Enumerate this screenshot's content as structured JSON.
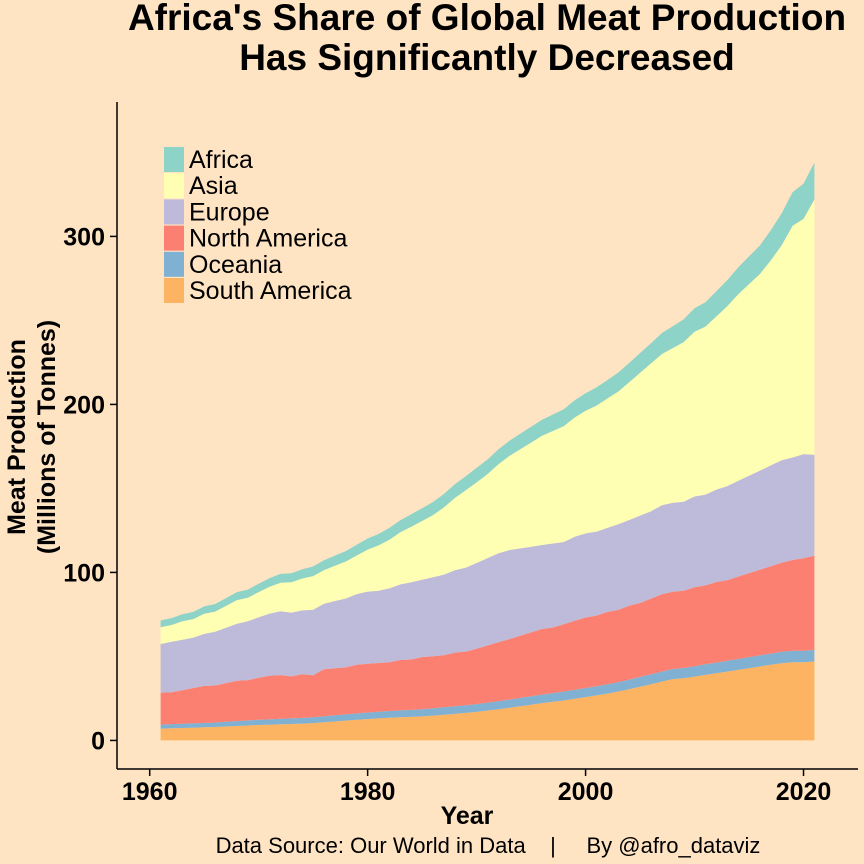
{
  "chart_data": {
    "type": "area",
    "title_lines": [
      "Africa's Share of Global Meat Production",
      "Has Significantly Decreased"
    ],
    "xlabel": "Year",
    "ylabel_lines": [
      "Meat Production",
      "(Millions of Tonnes)"
    ],
    "caption": "Data Source: Our World in Data    |     By @afro_dataviz",
    "xlim": [
      1957,
      2025
    ],
    "ylim": [
      -17,
      380
    ],
    "xticks": [
      1960,
      1980,
      2000,
      2020
    ],
    "yticks": [
      0,
      100,
      200,
      300
    ],
    "legend_position": "top-left",
    "grid": false,
    "stacking_order_bottom_to_top": [
      "South America",
      "Oceania",
      "North America",
      "Europe",
      "Asia",
      "Africa"
    ],
    "x": [
      1961,
      1962,
      1963,
      1964,
      1965,
      1966,
      1967,
      1968,
      1969,
      1970,
      1971,
      1972,
      1973,
      1974,
      1975,
      1976,
      1977,
      1978,
      1979,
      1980,
      1981,
      1982,
      1983,
      1984,
      1985,
      1986,
      1987,
      1988,
      1989,
      1990,
      1991,
      1992,
      1993,
      1994,
      1995,
      1996,
      1997,
      1998,
      1999,
      2000,
      2001,
      2002,
      2003,
      2004,
      2005,
      2006,
      2007,
      2008,
      2009,
      2010,
      2011,
      2012,
      2013,
      2014,
      2015,
      2016,
      2017,
      2018,
      2019,
      2020,
      2021
    ],
    "series": [
      {
        "name": "Africa",
        "color": "#8DD3C7",
        "values": [
          4.0,
          4.1,
          4.2,
          4.3,
          4.4,
          4.5,
          4.6,
          4.8,
          4.9,
          5.0,
          5.1,
          5.2,
          5.4,
          5.5,
          5.7,
          5.9,
          6.0,
          6.2,
          6.4,
          6.6,
          6.8,
          7.0,
          7.2,
          7.4,
          7.6,
          7.8,
          8.0,
          8.2,
          8.4,
          8.6,
          8.7,
          8.8,
          9.0,
          9.2,
          9.4,
          9.6,
          9.8,
          10.0,
          10.3,
          10.5,
          10.8,
          11.0,
          11.3,
          11.5,
          11.8,
          12.0,
          12.5,
          13.0,
          13.5,
          14.0,
          14.5,
          15.0,
          15.5,
          16.0,
          16.5,
          17.0,
          18.0,
          19.0,
          20.0,
          21.0,
          22.0
        ]
      },
      {
        "name": "Asia",
        "color": "#FFFFB3",
        "values": [
          10,
          10,
          11,
          11,
          12,
          12,
          13,
          14,
          14,
          15,
          16,
          17,
          18,
          19,
          20,
          20,
          21,
          22,
          23,
          25,
          27,
          29,
          31,
          33,
          35,
          37,
          40,
          43,
          46,
          48,
          50,
          53,
          56,
          59,
          62,
          65,
          67,
          69,
          71,
          73,
          75,
          77,
          79,
          82,
          85,
          88,
          90,
          92,
          95,
          98,
          100,
          103,
          107,
          111,
          114,
          117,
          122,
          128,
          138,
          140,
          152
        ]
      },
      {
        "name": "Europe",
        "color": "#BEBADA",
        "values": [
          29,
          30,
          30,
          30,
          31,
          32,
          33,
          34,
          35,
          36,
          37,
          38,
          38,
          38,
          39,
          39,
          40,
          41,
          42,
          43,
          43,
          44,
          45,
          46,
          46,
          47,
          48,
          49,
          50,
          51,
          52,
          53,
          53,
          52,
          51,
          50,
          50,
          49,
          50,
          50,
          50,
          50,
          51,
          51,
          52,
          52,
          53,
          53,
          53,
          54,
          54,
          55,
          56,
          57,
          58,
          59,
          60,
          61,
          61,
          62,
          60
        ]
      },
      {
        "name": "North America",
        "color": "#FB8072",
        "values": [
          19,
          19,
          20,
          21,
          22,
          22,
          23,
          24,
          24,
          25,
          26,
          26,
          25,
          26,
          25,
          28,
          28,
          28,
          29,
          29,
          29,
          29,
          30,
          30,
          31,
          31,
          31,
          32,
          32,
          33,
          34,
          35,
          36,
          37,
          38,
          39,
          39,
          40,
          41,
          42,
          42,
          43,
          43,
          44,
          44,
          45,
          46,
          46,
          46,
          47,
          47,
          48,
          48,
          49,
          50,
          51,
          52,
          53,
          54,
          55,
          56
        ]
      },
      {
        "name": "Oceania",
        "color": "#80B1D3",
        "values": [
          2.4,
          2.5,
          2.5,
          2.6,
          2.6,
          2.7,
          2.8,
          2.9,
          3.0,
          3.1,
          3.2,
          3.3,
          3.3,
          3.4,
          3.5,
          3.6,
          3.7,
          3.7,
          3.8,
          3.9,
          4.0,
          4.0,
          4.1,
          4.2,
          4.3,
          4.3,
          4.4,
          4.5,
          4.5,
          4.6,
          4.7,
          4.8,
          4.9,
          5.0,
          5.0,
          5.1,
          5.2,
          5.3,
          5.4,
          5.4,
          5.5,
          5.6,
          5.6,
          5.7,
          5.8,
          5.9,
          6.0,
          6.0,
          6.1,
          6.2,
          6.3,
          6.3,
          6.4,
          6.5,
          6.6,
          6.6,
          6.7,
          6.8,
          6.9,
          6.9,
          7.0
        ]
      },
      {
        "name": "South America",
        "color": "#FDB462",
        "values": [
          7,
          7.2,
          7.4,
          7.6,
          7.8,
          8.0,
          8.3,
          8.6,
          8.9,
          9.2,
          9.3,
          9.6,
          9.8,
          10.0,
          10.3,
          10.8,
          11.3,
          11.8,
          12.3,
          12.7,
          13.1,
          13.5,
          13.8,
          14.0,
          14.3,
          14.8,
          15.3,
          15.8,
          16.4,
          17.0,
          17.8,
          18.6,
          19.4,
          20.3,
          21.3,
          22.2,
          23.0,
          23.8,
          24.8,
          25.8,
          26.8,
          27.9,
          29.1,
          30.5,
          32.0,
          33.5,
          35.0,
          36.5,
          37.0,
          38.0,
          39.0,
          40.0,
          41.0,
          42.0,
          43.0,
          44.0,
          45.0,
          46.0,
          46.5,
          46.5,
          47.0
        ]
      }
    ]
  }
}
